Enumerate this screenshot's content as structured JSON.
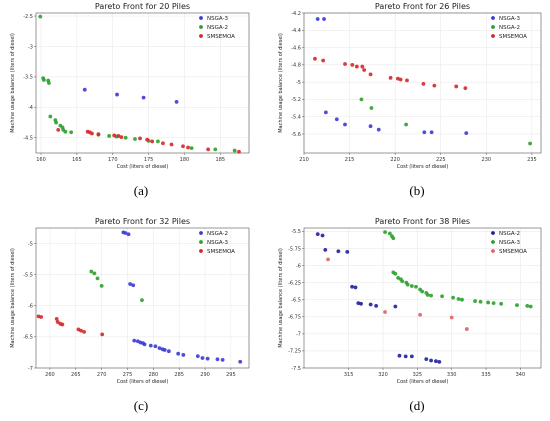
{
  "chart_data": [
    {
      "type": "scatter",
      "title": "Pareto Front for 20 Piles",
      "xlabel": "Cost (liters of diesel)",
      "ylabel": "Machine usage balance (liters of diesel)",
      "caption": "(a)",
      "xlim": [
        159.3,
        189
      ],
      "ylim": [
        -4.75,
        -2.45
      ],
      "xticks": [
        160,
        165,
        170,
        175,
        180,
        185
      ],
      "yticks": [
        -2.5,
        -3.0,
        -3.5,
        -4.0,
        -4.5
      ],
      "grid": true,
      "legend": "top-right",
      "series": [
        {
          "name": "NSGA-3",
          "color": "#3a3ad6",
          "points": [
            [
              166.1,
              -3.71
            ],
            [
              170.6,
              -3.79
            ],
            [
              174.3,
              -3.84
            ],
            [
              178.9,
              -3.91
            ]
          ]
        },
        {
          "name": "NSGA-2",
          "color": "#2ca02c",
          "points": [
            [
              159.9,
              -2.51
            ],
            [
              160.3,
              -3.52
            ],
            [
              160.4,
              -3.55
            ],
            [
              161.0,
              -3.56
            ],
            [
              161.1,
              -3.6
            ],
            [
              161.3,
              -4.15
            ],
            [
              162.0,
              -4.21
            ],
            [
              162.1,
              -4.25
            ],
            [
              162.7,
              -4.3
            ],
            [
              163.0,
              -4.33
            ],
            [
              163.1,
              -4.37
            ],
            [
              163.4,
              -4.4
            ],
            [
              164.2,
              -4.41
            ],
            [
              168.0,
              -4.45
            ],
            [
              169.5,
              -4.47
            ],
            [
              170.5,
              -4.48
            ],
            [
              171.8,
              -4.5
            ],
            [
              173.1,
              -4.52
            ],
            [
              175.0,
              -4.55
            ],
            [
              176.3,
              -4.56
            ],
            [
              181.0,
              -4.67
            ],
            [
              184.3,
              -4.69
            ],
            [
              187.0,
              -4.71
            ]
          ]
        },
        {
          "name": "SMSEMOA",
          "color": "#d62728",
          "points": [
            [
              162.4,
              -4.37
            ],
            [
              166.5,
              -4.4
            ],
            [
              166.8,
              -4.41
            ],
            [
              167.1,
              -4.43
            ],
            [
              168.0,
              -4.44
            ],
            [
              170.2,
              -4.46
            ],
            [
              170.8,
              -4.47
            ],
            [
              171.2,
              -4.49
            ],
            [
              173.8,
              -4.51
            ],
            [
              174.8,
              -4.53
            ],
            [
              175.5,
              -4.56
            ],
            [
              177.0,
              -4.59
            ],
            [
              178.2,
              -4.61
            ],
            [
              179.8,
              -4.64
            ],
            [
              180.5,
              -4.66
            ],
            [
              183.3,
              -4.69
            ],
            [
              187.6,
              -4.73
            ]
          ]
        }
      ]
    },
    {
      "type": "scatter",
      "title": "Pareto Front for 26 Piles",
      "xlabel": "Cost (liters of diesel)",
      "ylabel": "Machine usage balance (liters of diesel)",
      "caption": "(b)",
      "xlim": [
        210,
        236
      ],
      "ylim": [
        -5.82,
        -4.2
      ],
      "xticks": [
        210,
        215,
        220,
        225,
        230,
        235
      ],
      "yticks": [
        -4.2,
        -4.4,
        -4.6,
        -4.8,
        -5.0,
        -5.2,
        -5.4,
        -5.6
      ],
      "grid": true,
      "legend": "top-right",
      "series": [
        {
          "name": "NSGA-3",
          "color": "#3a3ad6",
          "points": [
            [
              211.5,
              -4.27
            ],
            [
              212.2,
              -4.27
            ],
            [
              212.4,
              -5.35
            ],
            [
              213.6,
              -5.43
            ],
            [
              214.5,
              -5.49
            ],
            [
              217.3,
              -5.51
            ],
            [
              218.2,
              -5.55
            ],
            [
              223.2,
              -5.58
            ],
            [
              224.0,
              -5.58
            ],
            [
              227.8,
              -5.59
            ]
          ]
        },
        {
          "name": "NSGA-2",
          "color": "#2ca02c",
          "points": [
            [
              216.3,
              -5.2
            ],
            [
              217.4,
              -5.3
            ],
            [
              221.2,
              -5.49
            ],
            [
              234.8,
              -5.71
            ]
          ]
        },
        {
          "name": "SMSEMOA",
          "color": "#d62728",
          "points": [
            [
              211.2,
              -4.73
            ],
            [
              212.1,
              -4.75
            ],
            [
              214.5,
              -4.79
            ],
            [
              215.3,
              -4.8
            ],
            [
              215.8,
              -4.82
            ],
            [
              216.4,
              -4.82
            ],
            [
              216.6,
              -4.86
            ],
            [
              217.3,
              -4.91
            ],
            [
              219.5,
              -4.95
            ],
            [
              220.3,
              -4.96
            ],
            [
              220.6,
              -4.97
            ],
            [
              221.3,
              -4.98
            ],
            [
              223.1,
              -5.02
            ],
            [
              224.3,
              -5.04
            ],
            [
              226.7,
              -5.05
            ],
            [
              227.7,
              -5.07
            ]
          ]
        }
      ]
    },
    {
      "type": "scatter",
      "title": "Pareto Front for 32 Piles",
      "xlabel": "Cost (liters of diesel)",
      "ylabel": "Machine usage balance (liters of diesel)",
      "caption": "(c)",
      "xlim": [
        257.3,
        298.5
      ],
      "ylim": [
        -7.0,
        -4.75
      ],
      "xticks": [
        260,
        265,
        270,
        275,
        280,
        285,
        290,
        295
      ],
      "yticks": [
        -5.0,
        -5.5,
        -6.0,
        -6.5,
        -7.0
      ],
      "grid": true,
      "legend": "top-right",
      "series": [
        {
          "name": "NSGA-2",
          "color": "#3a3ad6",
          "points": [
            [
              274.2,
              -4.82
            ],
            [
              274.6,
              -4.83
            ],
            [
              275.2,
              -4.85
            ],
            [
              275.5,
              -5.65
            ],
            [
              276.1,
              -5.67
            ],
            [
              276.3,
              -6.56
            ],
            [
              277.0,
              -6.57
            ],
            [
              277.5,
              -6.59
            ],
            [
              278.0,
              -6.6
            ],
            [
              278.3,
              -6.62
            ],
            [
              279.5,
              -6.64
            ],
            [
              280.4,
              -6.65
            ],
            [
              281.2,
              -6.68
            ],
            [
              281.8,
              -6.7
            ],
            [
              282.2,
              -6.71
            ],
            [
              283.0,
              -6.73
            ],
            [
              284.8,
              -6.77
            ],
            [
              285.8,
              -6.79
            ],
            [
              288.6,
              -6.81
            ],
            [
              289.5,
              -6.84
            ],
            [
              290.5,
              -6.85
            ],
            [
              292.4,
              -6.86
            ],
            [
              293.4,
              -6.87
            ],
            [
              296.8,
              -6.9
            ]
          ]
        },
        {
          "name": "NSGA-3",
          "color": "#2ca02c",
          "points": [
            [
              268.0,
              -5.45
            ],
            [
              268.6,
              -5.48
            ],
            [
              269.2,
              -5.56
            ],
            [
              270.0,
              -5.68
            ],
            [
              277.8,
              -5.91
            ]
          ]
        },
        {
          "name": "SMSEMOA",
          "color": "#d62728",
          "points": [
            [
              257.8,
              -6.17
            ],
            [
              258.3,
              -6.18
            ],
            [
              261.3,
              -6.21
            ],
            [
              261.5,
              -6.26
            ],
            [
              262.0,
              -6.29
            ],
            [
              262.4,
              -6.3
            ],
            [
              265.5,
              -6.38
            ],
            [
              266.0,
              -6.4
            ],
            [
              266.6,
              -6.42
            ],
            [
              270.1,
              -6.46
            ]
          ]
        }
      ]
    },
    {
      "type": "scatter",
      "title": "Pareto Front for 38 Piles",
      "xlabel": "Cost (liters of diesel)",
      "ylabel": "Machine usage balance (liters of diesel)",
      "caption": "(d)",
      "xlim": [
        308.5,
        343
      ],
      "ylim": [
        -7.5,
        -5.45
      ],
      "xticks": [
        315,
        320,
        325,
        330,
        335,
        340
      ],
      "yticks": [
        -5.5,
        -5.75,
        -6.0,
        -6.25,
        -6.5,
        -6.75,
        -7.0,
        -7.25,
        -7.5
      ],
      "grid": true,
      "legend": "top-right",
      "series": [
        {
          "name": "NSGA-2",
          "color": "#1f1fa0",
          "points": [
            [
              310.5,
              -5.54
            ],
            [
              311.2,
              -5.56
            ],
            [
              311.6,
              -5.77
            ],
            [
              313.5,
              -5.79
            ],
            [
              314.8,
              -5.8
            ],
            [
              315.5,
              -6.31
            ],
            [
              316.0,
              -6.32
            ],
            [
              316.4,
              -6.55
            ],
            [
              316.8,
              -6.56
            ],
            [
              318.2,
              -6.57
            ],
            [
              319.0,
              -6.59
            ],
            [
              321.8,
              -6.6
            ],
            [
              322.4,
              -7.32
            ],
            [
              323.3,
              -7.33
            ],
            [
              324.2,
              -7.33
            ],
            [
              326.3,
              -7.37
            ],
            [
              327.0,
              -7.39
            ],
            [
              327.7,
              -7.4
            ],
            [
              328.2,
              -7.41
            ]
          ]
        },
        {
          "name": "NSGA-3",
          "color": "#2ca02c",
          "points": [
            [
              320.3,
              -5.51
            ],
            [
              321.0,
              -5.53
            ],
            [
              321.3,
              -5.57
            ],
            [
              321.5,
              -5.6
            ],
            [
              321.5,
              -6.1
            ],
            [
              321.8,
              -6.12
            ],
            [
              322.2,
              -6.18
            ],
            [
              322.6,
              -6.2
            ],
            [
              322.8,
              -6.23
            ],
            [
              323.4,
              -6.25
            ],
            [
              323.6,
              -6.28
            ],
            [
              324.2,
              -6.3
            ],
            [
              324.8,
              -6.31
            ],
            [
              325.4,
              -6.35
            ],
            [
              325.7,
              -6.38
            ],
            [
              326.3,
              -6.4
            ],
            [
              326.5,
              -6.43
            ],
            [
              327.0,
              -6.44
            ],
            [
              328.6,
              -6.45
            ],
            [
              330.2,
              -6.47
            ],
            [
              331.0,
              -6.49
            ],
            [
              331.5,
              -6.5
            ],
            [
              333.4,
              -6.52
            ],
            [
              334.2,
              -6.53
            ],
            [
              335.3,
              -6.54
            ],
            [
              336.1,
              -6.55
            ],
            [
              337.2,
              -6.56
            ],
            [
              339.5,
              -6.58
            ],
            [
              341.0,
              -6.59
            ],
            [
              341.5,
              -6.6
            ]
          ]
        },
        {
          "name": "SMSEMOA",
          "color": "#e0626a",
          "points": [
            [
              312.0,
              -5.91
            ],
            [
              320.3,
              -6.68
            ],
            [
              325.4,
              -6.72
            ],
            [
              330.0,
              -6.76
            ],
            [
              332.2,
              -6.93
            ]
          ]
        }
      ]
    }
  ]
}
